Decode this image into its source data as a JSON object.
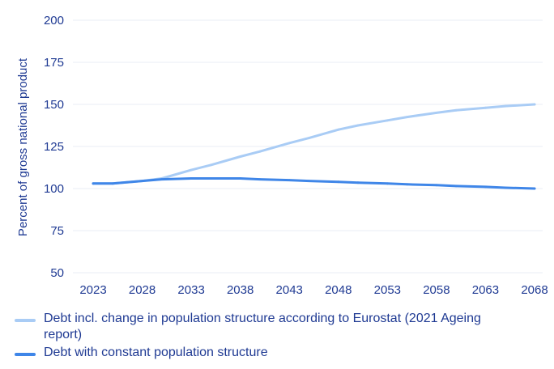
{
  "chart_data": {
    "type": "line",
    "ylabel": "Percent of gross national product",
    "xlabel": "",
    "title": "",
    "ylim": [
      50,
      200
    ],
    "yticks": [
      50,
      75,
      100,
      125,
      150,
      175,
      200
    ],
    "xlim": [
      2023,
      2068
    ],
    "xticks": [
      2023,
      2028,
      2033,
      2038,
      2043,
      2048,
      2053,
      2058,
      2063,
      2068
    ],
    "grid": true,
    "legend_position": "bottom",
    "x": [
      2023,
      2025,
      2028,
      2030,
      2033,
      2035,
      2038,
      2040,
      2043,
      2045,
      2048,
      2050,
      2053,
      2055,
      2058,
      2060,
      2063,
      2065,
      2068
    ],
    "series": [
      {
        "name": "Debt incl. change in population structure according to Eurostat (2021 Ageing report)",
        "color": "#a9ccf5",
        "values": [
          103,
          103,
          104.5,
          106,
          111,
          114,
          119,
          122,
          127,
          130,
          135,
          137.5,
          140.5,
          142.5,
          145,
          146.5,
          148,
          149,
          150
        ]
      },
      {
        "name": "Debt with constant population structure",
        "color": "#3f86e8",
        "values": [
          103,
          103,
          104.5,
          105.5,
          106,
          106,
          106,
          105.5,
          105,
          104.5,
          104,
          103.5,
          103,
          102.5,
          102,
          101.5,
          101,
          100.5,
          100
        ]
      }
    ]
  }
}
